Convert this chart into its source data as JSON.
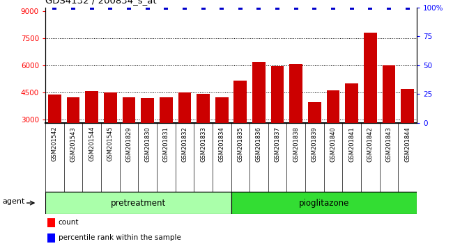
{
  "title": "GDS4132 / 200834_s_at",
  "samples": [
    "GSM201542",
    "GSM201543",
    "GSM201544",
    "GSM201545",
    "GSM201829",
    "GSM201830",
    "GSM201831",
    "GSM201832",
    "GSM201833",
    "GSM201834",
    "GSM201835",
    "GSM201836",
    "GSM201837",
    "GSM201838",
    "GSM201839",
    "GSM201840",
    "GSM201841",
    "GSM201842",
    "GSM201843",
    "GSM201844"
  ],
  "counts": [
    4380,
    4220,
    4580,
    4480,
    4230,
    4180,
    4230,
    4500,
    4430,
    4230,
    5150,
    6200,
    5950,
    6080,
    3950,
    4620,
    4980,
    7800,
    6000,
    4680
  ],
  "percentile": [
    100,
    100,
    100,
    100,
    100,
    100,
    100,
    100,
    100,
    100,
    100,
    100,
    100,
    100,
    100,
    100,
    100,
    100,
    100,
    100
  ],
  "groups": [
    {
      "label": "pretreatment",
      "start": 0,
      "end": 10
    },
    {
      "label": "pioglitazone",
      "start": 10,
      "end": 20
    }
  ],
  "group_color_1": "#AAFFAA",
  "group_color_2": "#33DD33",
  "bar_color": "#CC0000",
  "percentile_color": "#0000CC",
  "xtick_bg_color": "#C0C0C0",
  "plot_bg_color": "#FFFFFF",
  "ylim_left": [
    2800,
    9200
  ],
  "ylim_right": [
    0,
    100
  ],
  "yticks_left": [
    3000,
    4500,
    6000,
    7500,
    9000
  ],
  "yticks_right": [
    0,
    25,
    50,
    75,
    100
  ],
  "ytick_labels_right": [
    "0",
    "25",
    "50",
    "75",
    "100%"
  ],
  "grid_values": [
    3000,
    4500,
    6000,
    7500
  ],
  "legend_count_label": "count",
  "legend_pct_label": "percentile rank within the sample",
  "agent_label": "agent"
}
